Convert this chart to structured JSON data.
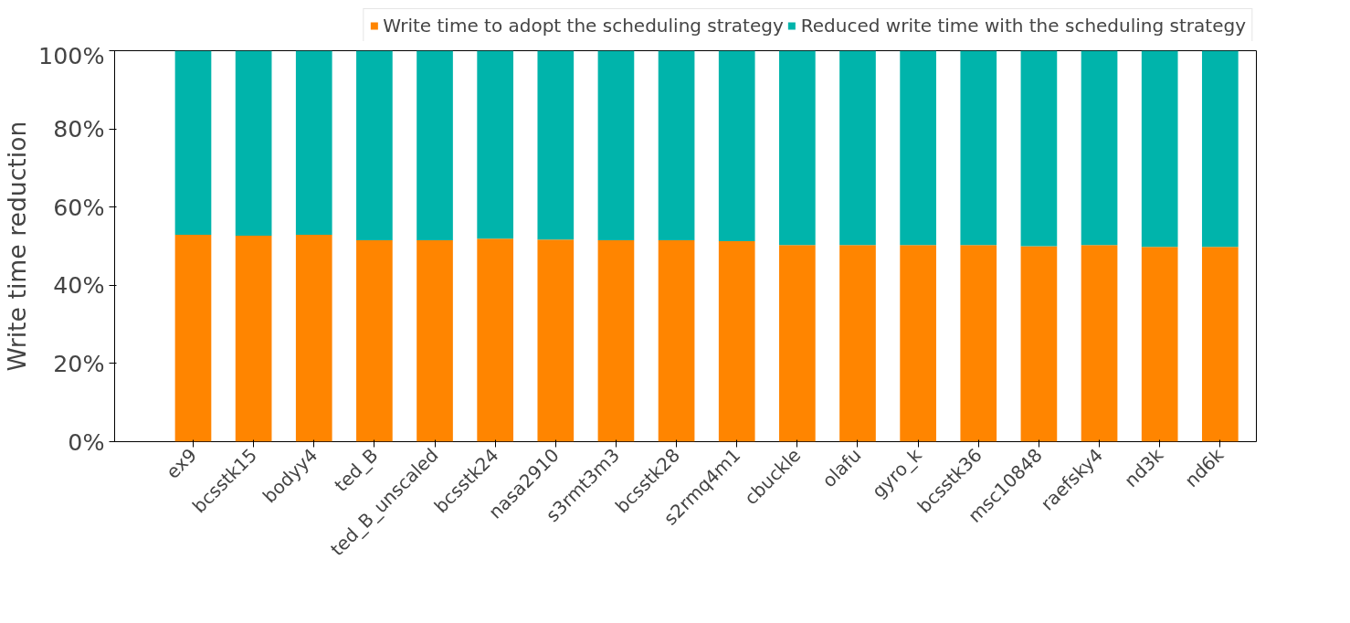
{
  "chart_data": {
    "type": "bar",
    "stacked": true,
    "ylabel": "Write time reduction",
    "categories": [
      "ex9",
      "bcsstk15",
      "bodyy4",
      "ted_B",
      "ted_B_unscaled",
      "bcsstk24",
      "nasa2910",
      "s3rmt3m3",
      "bcsstk28",
      "s2rmq4m1",
      "cbuckle",
      "olafu",
      "gyro_k",
      "bcsstk36",
      "msc10848",
      "raefsky4",
      "nd3k",
      "nd6k"
    ],
    "series": [
      {
        "name": "Write time to adopt the scheduling strategy",
        "color": "#ff8500",
        "values": [
          52.9,
          52.7,
          52.9,
          51.5,
          51.5,
          51.9,
          51.7,
          51.5,
          51.5,
          51.3,
          50.3,
          50.3,
          50.3,
          50.3,
          50.0,
          50.3,
          49.8,
          49.8
        ]
      },
      {
        "name": "Reduced write time with the scheduling strategy",
        "color": "#00b4ab",
        "values": [
          47.1,
          47.3,
          47.1,
          48.5,
          48.5,
          48.1,
          48.3,
          48.5,
          48.5,
          48.7,
          49.7,
          49.7,
          49.7,
          49.7,
          50.0,
          49.7,
          50.2,
          50.2
        ]
      }
    ],
    "ylim": [
      0,
      100
    ],
    "yticks": [
      {
        "value": 0,
        "label": "0%"
      },
      {
        "value": 20,
        "label": "20%"
      },
      {
        "value": 40,
        "label": "40%"
      },
      {
        "value": 60,
        "label": "60%"
      },
      {
        "value": 80,
        "label": "80%"
      },
      {
        "value": 100,
        "label": "100%"
      }
    ],
    "grid": false,
    "legend": "top"
  }
}
